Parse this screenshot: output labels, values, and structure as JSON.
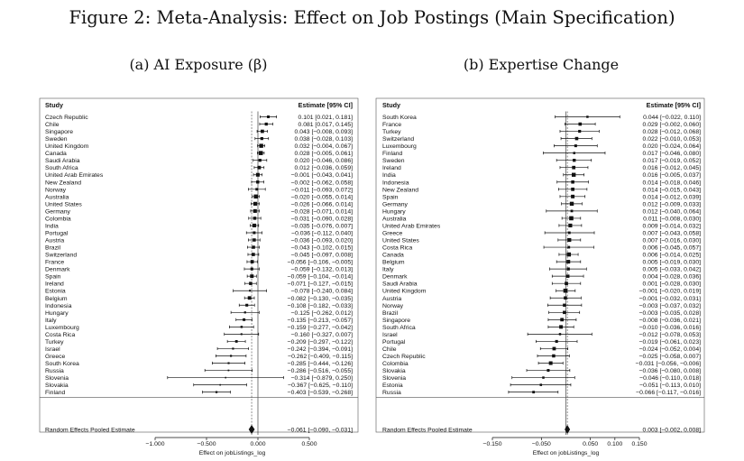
{
  "figure_title": "Figure 2: Meta-Analysis: Effect on Job Postings (Main Specification)",
  "chart_data": [
    {
      "type": "forest",
      "panel_title": "(a) AI Exposure (β)",
      "col_study": "Study",
      "col_estimate": "Estimate [95% CI]",
      "xlabel": "Effect on jobListings_log",
      "xlim": [
        -1.0,
        0.5
      ],
      "xticks": [
        "-1.000",
        "-0.500",
        "0.000",
        "0.500"
      ],
      "tick_values": [
        -1.0,
        -0.5,
        0.0,
        0.5
      ],
      "reference_line": 0.0,
      "pooled_line": -0.061,
      "studies": [
        {
          "name": "Czech Republic",
          "est": 0.101,
          "lo": 0.021,
          "hi": 0.181,
          "label": "0.101 [0.021, 0.181]"
        },
        {
          "name": "Chile",
          "est": 0.081,
          "lo": 0.017,
          "hi": 0.145,
          "label": "0.081 [0.017, 0.145]"
        },
        {
          "name": "Singapore",
          "est": 0.043,
          "lo": -0.008,
          "hi": 0.093,
          "label": "0.043 [−0.008, 0.093]"
        },
        {
          "name": "Sweden",
          "est": 0.038,
          "lo": -0.028,
          "hi": 0.103,
          "label": "0.038 [−0.028, 0.103]"
        },
        {
          "name": "United Kingdom",
          "est": 0.032,
          "lo": -0.004,
          "hi": 0.067,
          "label": "0.032 [−0.004, 0.067]"
        },
        {
          "name": "Canada",
          "est": 0.028,
          "lo": -0.005,
          "hi": 0.061,
          "label": "0.028 [−0.005, 0.061]"
        },
        {
          "name": "Saudi Arabia",
          "est": 0.02,
          "lo": -0.046,
          "hi": 0.086,
          "label": "0.020 [−0.046, 0.086]"
        },
        {
          "name": "South Africa",
          "est": 0.012,
          "lo": -0.036,
          "hi": 0.059,
          "label": "0.012 [−0.036, 0.059]"
        },
        {
          "name": "United Arab Emirates",
          "est": -0.001,
          "lo": -0.043,
          "hi": 0.041,
          "label": "−0.001 [−0.043, 0.041]"
        },
        {
          "name": "New Zealand",
          "est": -0.002,
          "lo": -0.062,
          "hi": 0.058,
          "label": "−0.002 [−0.062, 0.058]"
        },
        {
          "name": "Norway",
          "est": -0.011,
          "lo": -0.093,
          "hi": 0.072,
          "label": "−0.011 [−0.093, 0.072]"
        },
        {
          "name": "Australia",
          "est": -0.02,
          "lo": -0.055,
          "hi": 0.014,
          "label": "−0.020 [−0.055, 0.014]"
        },
        {
          "name": "United States",
          "est": -0.026,
          "lo": -0.066,
          "hi": 0.014,
          "label": "−0.026 [−0.066, 0.014]"
        },
        {
          "name": "Germany",
          "est": -0.028,
          "lo": -0.071,
          "hi": 0.014,
          "label": "−0.028 [−0.071, 0.014]"
        },
        {
          "name": "Colombia",
          "est": -0.031,
          "lo": -0.09,
          "hi": 0.028,
          "label": "−0.031 [−0.090, 0.028]"
        },
        {
          "name": "India",
          "est": -0.035,
          "lo": -0.076,
          "hi": 0.007,
          "label": "−0.035 [−0.076, 0.007]"
        },
        {
          "name": "Portugal",
          "est": -0.036,
          "lo": -0.112,
          "hi": 0.04,
          "label": "−0.036 [−0.112, 0.040]"
        },
        {
          "name": "Austria",
          "est": -0.036,
          "lo": -0.093,
          "hi": 0.02,
          "label": "−0.036 [−0.093, 0.020]"
        },
        {
          "name": "Brazil",
          "est": -0.043,
          "lo": -0.102,
          "hi": 0.015,
          "label": "−0.043 [−0.102, 0.015]"
        },
        {
          "name": "Switzerland",
          "est": -0.045,
          "lo": -0.097,
          "hi": 0.008,
          "label": "−0.045 [−0.097, 0.008]"
        },
        {
          "name": "France",
          "est": -0.056,
          "lo": -0.106,
          "hi": -0.005,
          "label": "−0.056 [−0.106, −0.005]"
        },
        {
          "name": "Denmark",
          "est": -0.059,
          "lo": -0.132,
          "hi": 0.013,
          "label": "−0.059 [−0.132, 0.013]"
        },
        {
          "name": "Spain",
          "est": -0.059,
          "lo": -0.104,
          "hi": -0.014,
          "label": "−0.059 [−0.104, −0.014]"
        },
        {
          "name": "Ireland",
          "est": -0.071,
          "lo": -0.127,
          "hi": -0.015,
          "label": "−0.071 [−0.127, −0.015]"
        },
        {
          "name": "Estonia",
          "est": -0.078,
          "lo": -0.24,
          "hi": 0.084,
          "label": "−0.078 [−0.240, 0.084]"
        },
        {
          "name": "Belgium",
          "est": -0.082,
          "lo": -0.13,
          "hi": -0.035,
          "label": "−0.082 [−0.130, −0.035]"
        },
        {
          "name": "Indonesia",
          "est": -0.108,
          "lo": -0.182,
          "hi": -0.033,
          "label": "−0.108 [−0.182, −0.033]"
        },
        {
          "name": "Hungary",
          "est": -0.125,
          "lo": -0.262,
          "hi": 0.012,
          "label": "−0.125 [−0.262, 0.012]"
        },
        {
          "name": "Italy",
          "est": -0.135,
          "lo": -0.213,
          "hi": -0.057,
          "label": "−0.135 [−0.213, −0.057]"
        },
        {
          "name": "Luxembourg",
          "est": -0.159,
          "lo": -0.277,
          "hi": -0.042,
          "label": "−0.159 [−0.277, −0.042]"
        },
        {
          "name": "Costa Rica",
          "est": -0.16,
          "lo": -0.327,
          "hi": 0.007,
          "label": "−0.160 [−0.327, 0.007]"
        },
        {
          "name": "Turkey",
          "est": -0.209,
          "lo": -0.297,
          "hi": -0.122,
          "label": "−0.209 [−0.297, −0.122]"
        },
        {
          "name": "Israel",
          "est": -0.242,
          "lo": -0.394,
          "hi": -0.091,
          "label": "−0.242 [−0.394, −0.091]"
        },
        {
          "name": "Greece",
          "est": -0.262,
          "lo": -0.409,
          "hi": -0.115,
          "label": "−0.262 [−0.409, −0.115]"
        },
        {
          "name": "South Korea",
          "est": -0.285,
          "lo": -0.444,
          "hi": -0.126,
          "label": "−0.285 [−0.444, −0.126]"
        },
        {
          "name": "Russia",
          "est": -0.286,
          "lo": -0.516,
          "hi": -0.055,
          "label": "−0.286 [−0.516, −0.055]"
        },
        {
          "name": "Slovenia",
          "est": -0.314,
          "lo": -0.879,
          "hi": 0.25,
          "label": "−0.314 [−0.879, 0.250]"
        },
        {
          "name": "Slovakia",
          "est": -0.367,
          "lo": -0.625,
          "hi": -0.11,
          "label": "−0.367 [−0.625, −0.110]"
        },
        {
          "name": "Finland",
          "est": -0.403,
          "lo": -0.539,
          "hi": -0.268,
          "label": "−0.403 [−0.539, −0.268]"
        }
      ],
      "pooled": {
        "name": "Random Effects Pooled Estimate",
        "est": -0.061,
        "lo": -0.09,
        "hi": -0.031,
        "label": "−0.061 [−0.090, −0.031]"
      }
    },
    {
      "type": "forest",
      "panel_title": "(b) Expertise Change",
      "col_study": "Study",
      "col_estimate": "Estimate [95% CI]",
      "xlabel": "Effect on jobListings_log",
      "xlim": [
        -0.15,
        0.15
      ],
      "xticks": [
        "-0.150",
        "-0.050",
        "0.050",
        "0.100",
        "0.150"
      ],
      "tick_values": [
        -0.15,
        -0.05,
        0.05,
        0.1,
        0.15
      ],
      "reference_line": 0.0,
      "pooled_line": 0.003,
      "studies": [
        {
          "name": "South Korea",
          "est": 0.044,
          "lo": -0.022,
          "hi": 0.11,
          "label": "0.044 [−0.022, 0.110]"
        },
        {
          "name": "France",
          "est": 0.029,
          "lo": -0.002,
          "hi": 0.06,
          "label": "0.029 [−0.002, 0.060]"
        },
        {
          "name": "Turkey",
          "est": 0.028,
          "lo": -0.012,
          "hi": 0.068,
          "label": "0.028 [−0.012, 0.068]"
        },
        {
          "name": "Switzerland",
          "est": 0.022,
          "lo": -0.01,
          "hi": 0.053,
          "label": "0.022 [−0.010, 0.053]"
        },
        {
          "name": "Luxembourg",
          "est": 0.02,
          "lo": -0.024,
          "hi": 0.064,
          "label": "0.020 [−0.024, 0.064]"
        },
        {
          "name": "Finland",
          "est": 0.017,
          "lo": -0.046,
          "hi": 0.08,
          "label": "0.017 [−0.046, 0.080]"
        },
        {
          "name": "Sweden",
          "est": 0.017,
          "lo": -0.019,
          "hi": 0.052,
          "label": "0.017 [−0.019, 0.052]"
        },
        {
          "name": "Ireland",
          "est": 0.016,
          "lo": -0.012,
          "hi": 0.045,
          "label": "0.016 [−0.012, 0.045]"
        },
        {
          "name": "India",
          "est": 0.016,
          "lo": -0.005,
          "hi": 0.037,
          "label": "0.016 [−0.005, 0.037]"
        },
        {
          "name": "Indonesia",
          "est": 0.014,
          "lo": -0.018,
          "hi": 0.046,
          "label": "0.014 [−0.018, 0.046]"
        },
        {
          "name": "New Zealand",
          "est": 0.014,
          "lo": -0.015,
          "hi": 0.043,
          "label": "0.014 [−0.015, 0.043]"
        },
        {
          "name": "Spain",
          "est": 0.014,
          "lo": -0.012,
          "hi": 0.039,
          "label": "0.014 [−0.012, 0.039]"
        },
        {
          "name": "Germany",
          "est": 0.012,
          "lo": -0.009,
          "hi": 0.033,
          "label": "0.012 [−0.009, 0.033]"
        },
        {
          "name": "Hungary",
          "est": 0.012,
          "lo": -0.04,
          "hi": 0.064,
          "label": "0.012 [−0.040, 0.064]"
        },
        {
          "name": "Australia",
          "est": 0.011,
          "lo": -0.008,
          "hi": 0.03,
          "label": "0.011 [−0.008, 0.030]"
        },
        {
          "name": "United Arab Emirates",
          "est": 0.009,
          "lo": -0.014,
          "hi": 0.032,
          "label": "0.009 [−0.014, 0.032]"
        },
        {
          "name": "Greece",
          "est": 0.007,
          "lo": -0.043,
          "hi": 0.058,
          "label": "0.007 [−0.043, 0.058]"
        },
        {
          "name": "United States",
          "est": 0.007,
          "lo": -0.016,
          "hi": 0.03,
          "label": "0.007 [−0.016, 0.030]"
        },
        {
          "name": "Costa Rica",
          "est": 0.006,
          "lo": -0.045,
          "hi": 0.057,
          "label": "0.006 [−0.045, 0.057]"
        },
        {
          "name": "Canada",
          "est": 0.006,
          "lo": -0.014,
          "hi": 0.025,
          "label": "0.006 [−0.014, 0.025]"
        },
        {
          "name": "Belgium",
          "est": 0.005,
          "lo": -0.019,
          "hi": 0.03,
          "label": "0.005 [−0.019, 0.030]"
        },
        {
          "name": "Italy",
          "est": 0.005,
          "lo": -0.033,
          "hi": 0.042,
          "label": "0.005 [−0.033, 0.042]"
        },
        {
          "name": "Denmark",
          "est": 0.004,
          "lo": -0.028,
          "hi": 0.036,
          "label": "0.004 [−0.028, 0.036]"
        },
        {
          "name": "Saudi Arabia",
          "est": 0.001,
          "lo": -0.028,
          "hi": 0.03,
          "label": "0.001 [−0.028, 0.030]"
        },
        {
          "name": "United Kingdom",
          "est": -0.001,
          "lo": -0.02,
          "hi": 0.019,
          "label": "−0.001 [−0.020, 0.019]"
        },
        {
          "name": "Austria",
          "est": -0.001,
          "lo": -0.032,
          "hi": 0.031,
          "label": "−0.001 [−0.032, 0.031]"
        },
        {
          "name": "Norway",
          "est": -0.003,
          "lo": -0.037,
          "hi": 0.032,
          "label": "−0.003 [−0.037, 0.032]"
        },
        {
          "name": "Brazil",
          "est": -0.003,
          "lo": -0.035,
          "hi": 0.028,
          "label": "−0.003 [−0.035, 0.028]"
        },
        {
          "name": "Singapore",
          "est": -0.008,
          "lo": -0.036,
          "hi": 0.021,
          "label": "−0.008 [−0.036, 0.021]"
        },
        {
          "name": "South Africa",
          "est": -0.01,
          "lo": -0.036,
          "hi": 0.016,
          "label": "−0.010 [−0.036, 0.016]"
        },
        {
          "name": "Israel",
          "est": -0.012,
          "lo": -0.078,
          "hi": 0.053,
          "label": "−0.012 [−0.078, 0.053]"
        },
        {
          "name": "Portugal",
          "est": -0.019,
          "lo": -0.061,
          "hi": 0.023,
          "label": "−0.019 [−0.061, 0.023]"
        },
        {
          "name": "Chile",
          "est": -0.024,
          "lo": -0.052,
          "hi": 0.004,
          "label": "−0.024 [−0.052, 0.004]"
        },
        {
          "name": "Czech Republic",
          "est": -0.025,
          "lo": -0.058,
          "hi": 0.007,
          "label": "−0.025 [−0.058, 0.007]"
        },
        {
          "name": "Colombia",
          "est": -0.031,
          "lo": -0.056,
          "hi": -0.006,
          "label": "−0.031 [−0.056, −0.006]"
        },
        {
          "name": "Slovakia",
          "est": -0.036,
          "lo": -0.08,
          "hi": 0.008,
          "label": "−0.036 [−0.080, 0.008]"
        },
        {
          "name": "Slovenia",
          "est": -0.046,
          "lo": -0.11,
          "hi": 0.018,
          "label": "−0.046 [−0.110, 0.018]"
        },
        {
          "name": "Estonia",
          "est": -0.051,
          "lo": -0.113,
          "hi": 0.01,
          "label": "−0.051 [−0.113, 0.010]"
        },
        {
          "name": "Russia",
          "est": -0.066,
          "lo": -0.117,
          "hi": -0.016,
          "label": "−0.066 [−0.117, −0.016]"
        }
      ],
      "pooled": {
        "name": "Random Effects Pooled Estimate",
        "est": 0.003,
        "lo": -0.002,
        "hi": 0.008,
        "label": "0.003 [−0.002, 0.008]"
      }
    }
  ]
}
